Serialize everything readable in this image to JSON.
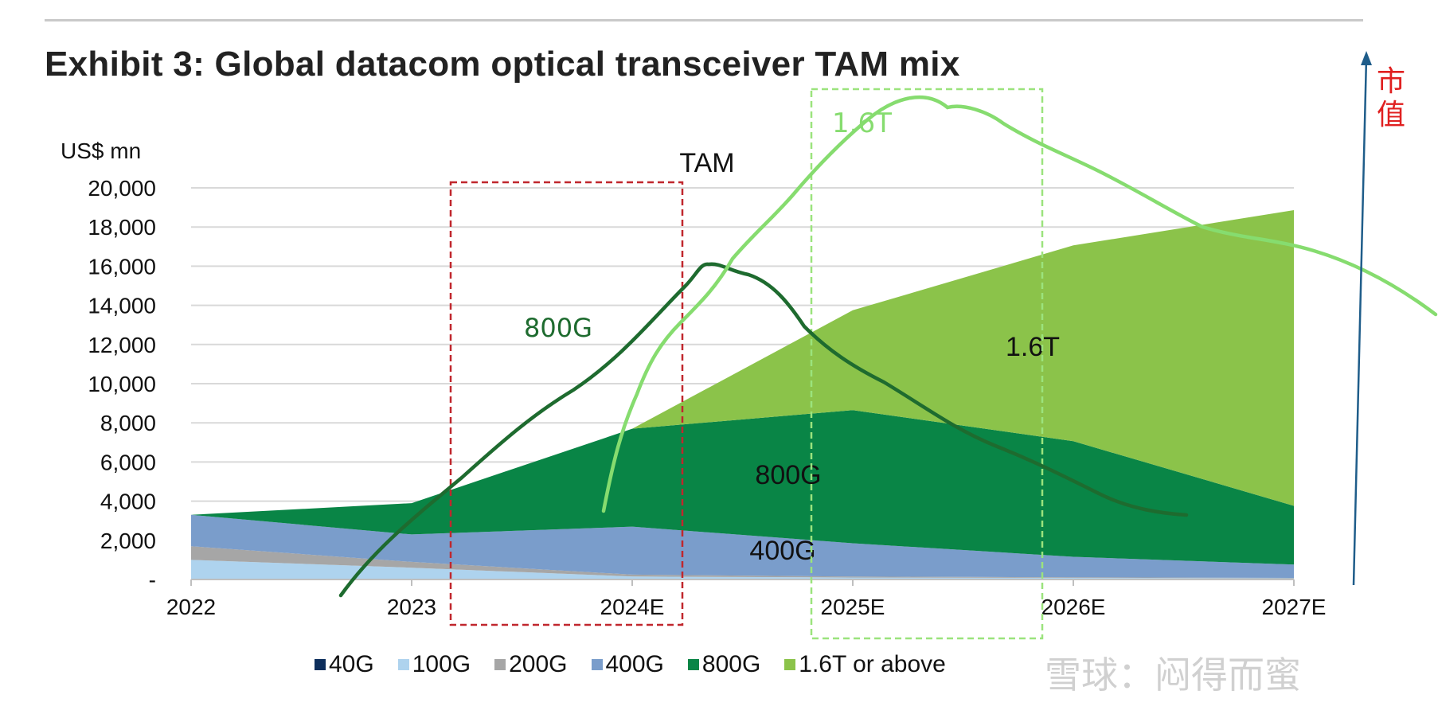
{
  "title": "Exhibit 3: Global datacom optical transceiver TAM mix",
  "chart_data": {
    "type": "area",
    "title": "Exhibit 3: Global datacom optical transceiver TAM mix",
    "ylabel": "US$ mn",
    "categories": [
      "2022",
      "2023",
      "2024E",
      "2025E",
      "2026E",
      "2027E"
    ],
    "ylim": [
      0,
      20000
    ],
    "yticks": [
      0,
      2000,
      4000,
      6000,
      8000,
      10000,
      12000,
      14000,
      16000,
      18000,
      20000
    ],
    "ytick_labels": [
      "-",
      "2,000",
      "4,000",
      "6,000",
      "8,000",
      "10,000",
      "12,000",
      "14,000",
      "16,000",
      "18,000",
      "20,000"
    ],
    "stacked": true,
    "grid": "horizontal",
    "legend_position": "bottom",
    "series": [
      {
        "name": "40G",
        "color": "#0d2e5c",
        "values": [
          0,
          0,
          0,
          0,
          0,
          0
        ]
      },
      {
        "name": "100G",
        "color": "#aed3ee",
        "values": [
          1000,
          600,
          150,
          100,
          80,
          60
        ]
      },
      {
        "name": "200G",
        "color": "#a6a6a6",
        "values": [
          700,
          300,
          100,
          50,
          30,
          20
        ]
      },
      {
        "name": "400G",
        "color": "#7a9dcb",
        "values": [
          1600,
          1400,
          2450,
          1700,
          1050,
          680
        ]
      },
      {
        "name": "800G",
        "color": "#098546",
        "values": [
          0,
          1600,
          5000,
          6800,
          5900,
          3000
        ]
      },
      {
        "name": "1.6T or above",
        "color": "#8bc34a",
        "values": [
          0,
          0,
          0,
          5100,
          10000,
          15100
        ]
      }
    ],
    "area_labels": [
      {
        "text": "TAM",
        "series": "total"
      },
      {
        "text": "400G",
        "series": "400G"
      },
      {
        "text": "800G",
        "series": "800G"
      },
      {
        "text": "1.6T",
        "series": "1.6T or above"
      }
    ],
    "annotations": {
      "handwritten_800G_label": "800G",
      "handwritten_16T_label": "1.6T",
      "vertical_axis_note": "市值"
    }
  },
  "watermark": "雪球：闷得而蜜"
}
